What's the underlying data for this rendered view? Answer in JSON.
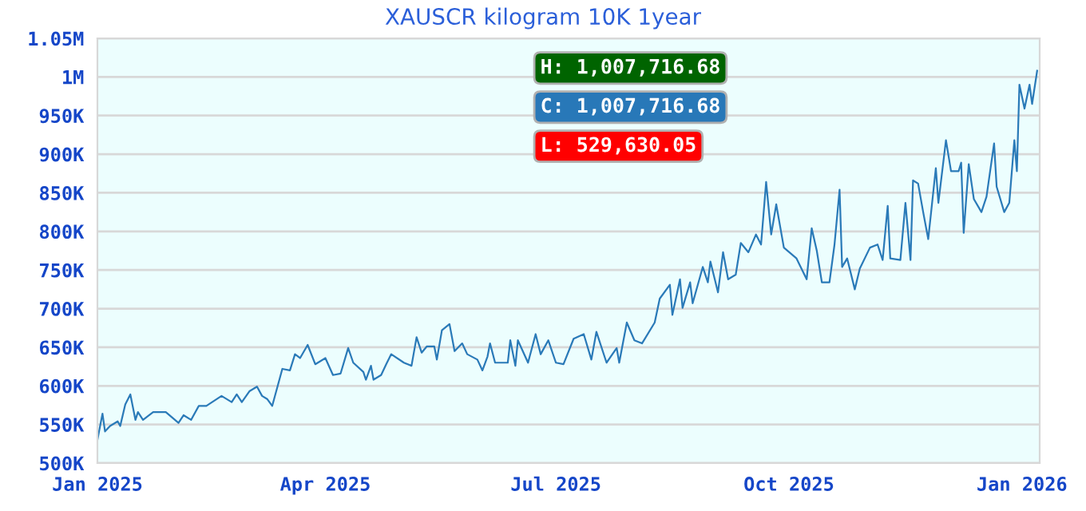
{
  "chart_data": {
    "type": "line",
    "title": "XAUSCR kilogram 10K 1year",
    "x": [
      "2025-01-01",
      "2025-01-03",
      "2025-01-04",
      "2025-01-06",
      "2025-01-09",
      "2025-01-10",
      "2025-01-12",
      "2025-01-14",
      "2025-01-16",
      "2025-01-17",
      "2025-01-19",
      "2025-01-23",
      "2025-01-28",
      "2025-02-02",
      "2025-02-04",
      "2025-02-07",
      "2025-02-10",
      "2025-02-13",
      "2025-02-19",
      "2025-02-23",
      "2025-02-25",
      "2025-02-27",
      "2025-03-02",
      "2025-03-05",
      "2025-03-07",
      "2025-03-09",
      "2025-03-11",
      "2025-03-15",
      "2025-03-18",
      "2025-03-20",
      "2025-03-22",
      "2025-03-25",
      "2025-03-28",
      "2025-04-01",
      "2025-04-04",
      "2025-04-07",
      "2025-04-10",
      "2025-04-12",
      "2025-04-16",
      "2025-04-17",
      "2025-04-19",
      "2025-04-20",
      "2025-04-23",
      "2025-04-25",
      "2025-04-27",
      "2025-05-02",
      "2025-05-05",
      "2025-05-07",
      "2025-05-09",
      "2025-05-11",
      "2025-05-14",
      "2025-05-15",
      "2025-05-17",
      "2025-05-20",
      "2025-05-22",
      "2025-05-25",
      "2025-05-27",
      "2025-05-31",
      "2025-06-02",
      "2025-06-04",
      "2025-06-05",
      "2025-06-07",
      "2025-06-12",
      "2025-06-13",
      "2025-06-15",
      "2025-06-16",
      "2025-06-20",
      "2025-06-23",
      "2025-06-25",
      "2025-06-28",
      "2025-07-01",
      "2025-07-04",
      "2025-07-08",
      "2025-07-12",
      "2025-07-15",
      "2025-07-17",
      "2025-07-21",
      "2025-07-25",
      "2025-07-26",
      "2025-07-29",
      "2025-08-01",
      "2025-08-04",
      "2025-08-09",
      "2025-08-11",
      "2025-08-15",
      "2025-08-16",
      "2025-08-19",
      "2025-08-20",
      "2025-08-23",
      "2025-08-24",
      "2025-08-28",
      "2025-08-30",
      "2025-08-31",
      "2025-09-03",
      "2025-09-05",
      "2025-09-07",
      "2025-09-10",
      "2025-09-12",
      "2025-09-15",
      "2025-09-18",
      "2025-09-20",
      "2025-09-22",
      "2025-09-24",
      "2025-09-26",
      "2025-09-29",
      "2025-10-04",
      "2025-10-08",
      "2025-10-10",
      "2025-10-12",
      "2025-10-14",
      "2025-10-17",
      "2025-10-19",
      "2025-10-21",
      "2025-10-22",
      "2025-10-24",
      "2025-10-27",
      "2025-10-29",
      "2025-11-02",
      "2025-11-05",
      "2025-11-07",
      "2025-11-09",
      "2025-11-10",
      "2025-11-14",
      "2025-11-16",
      "2025-11-18",
      "2025-11-19",
      "2025-11-21",
      "2025-11-23",
      "2025-11-25",
      "2025-11-28",
      "2025-11-29",
      "2025-12-02",
      "2025-12-04",
      "2025-12-07",
      "2025-12-08",
      "2025-12-09",
      "2025-12-11",
      "2025-12-13",
      "2025-12-16",
      "2025-12-18",
      "2025-12-21",
      "2025-12-22",
      "2025-12-25",
      "2025-12-27",
      "2025-12-29",
      "2025-12-30",
      "2025-12-31",
      "2026-01-02",
      "2026-01-04",
      "2026-01-05",
      "2026-01-07"
    ],
    "series": [
      {
        "color": "#2a7ab8",
        "values": [
          530000,
          564000,
          541000,
          548000,
          554000,
          548000,
          576000,
          589000,
          556000,
          566000,
          556000,
          566000,
          566000,
          552000,
          562000,
          556000,
          574000,
          574000,
          587000,
          579000,
          589000,
          579000,
          593000,
          599000,
          587000,
          583000,
          574000,
          622000,
          620000,
          641000,
          636000,
          653000,
          628000,
          636000,
          614000,
          616000,
          649000,
          630000,
          618000,
          608000,
          626000,
          608000,
          614000,
          628000,
          641000,
          630000,
          626000,
          663000,
          643000,
          651000,
          651000,
          634000,
          672000,
          680000,
          645000,
          655000,
          641000,
          634000,
          620000,
          638000,
          655000,
          630000,
          630000,
          659000,
          626000,
          659000,
          630000,
          667000,
          641000,
          659000,
          630000,
          628000,
          661000,
          667000,
          634000,
          670000,
          630000,
          649000,
          630000,
          682000,
          659000,
          655000,
          682000,
          713000,
          731000,
          692000,
          738000,
          701000,
          734000,
          707000,
          754000,
          734000,
          761000,
          721000,
          773000,
          738000,
          744000,
          785000,
          773000,
          796000,
          783000,
          864000,
          796000,
          835000,
          779000,
          765000,
          738000,
          804000,
          775000,
          734000,
          734000,
          783000,
          854000,
          754000,
          765000,
          725000,
          752000,
          779000,
          783000,
          763000,
          833000,
          765000,
          763000,
          837000,
          763000,
          866000,
          862000,
          825000,
          790000,
          882000,
          837000,
          918000,
          878000,
          878000,
          889000,
          798000,
          887000,
          842000,
          825000,
          845000,
          914000,
          858000,
          825000,
          837000,
          918000,
          878000,
          990000,
          959000,
          990000,
          965000,
          1008000
        ]
      }
    ],
    "xlim": [
      "2025-01-01",
      "2026-01-08"
    ],
    "xticks": [
      {
        "value": "2025-01-01",
        "label": "Jan 2025"
      },
      {
        "value": "2025-04-01",
        "label": "Apr 2025"
      },
      {
        "value": "2025-07-01",
        "label": "Jul 2025"
      },
      {
        "value": "2025-10-01",
        "label": "Oct 2025"
      },
      {
        "value": "2026-01-01",
        "label": "Jan 2026"
      }
    ],
    "ylim": [
      500000,
      1050000
    ],
    "yticks": [
      {
        "value": 500000,
        "label": "500K"
      },
      {
        "value": 550000,
        "label": "550K"
      },
      {
        "value": 600000,
        "label": "600K"
      },
      {
        "value": 650000,
        "label": "650K"
      },
      {
        "value": 700000,
        "label": "700K"
      },
      {
        "value": 750000,
        "label": "750K"
      },
      {
        "value": 800000,
        "label": "800K"
      },
      {
        "value": 850000,
        "label": "850K"
      },
      {
        "value": 900000,
        "label": "900K"
      },
      {
        "value": 950000,
        "label": "950K"
      },
      {
        "value": 1000000,
        "label": "1M"
      },
      {
        "value": 1050000,
        "label": "1.05M"
      }
    ],
    "grid": "y",
    "marker": "none",
    "line_style": "solid",
    "annotations": [
      "H: 1,007,716.68",
      "C: 1,007,716.68",
      "L: 529,630.05"
    ]
  }
}
